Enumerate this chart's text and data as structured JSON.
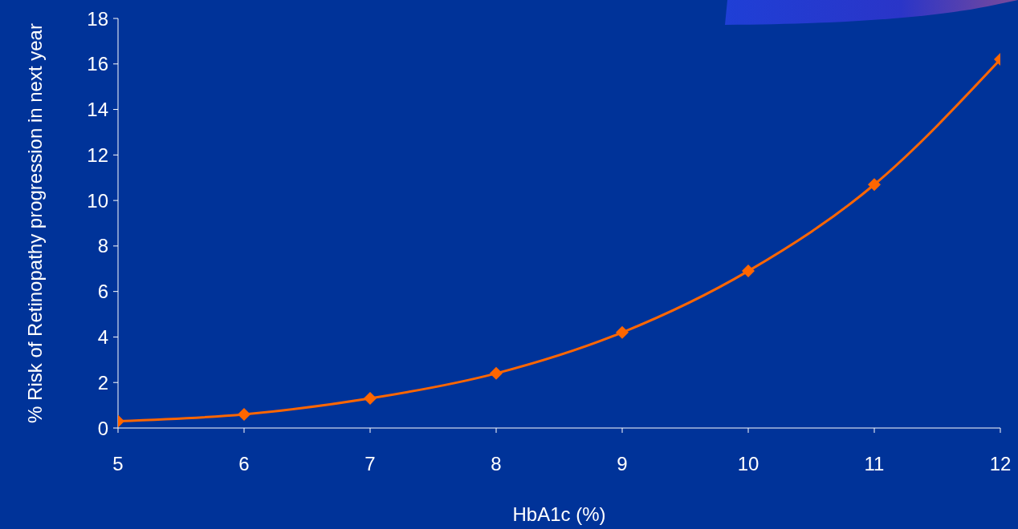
{
  "chart_data": {
    "type": "line",
    "xlabel": "HbA1c (%)",
    "ylabel": "% Risk of Retinopathy progression in next year",
    "x": [
      5,
      6,
      7,
      8,
      9,
      10,
      11,
      12
    ],
    "series": [
      {
        "color": "#ff6600",
        "values": [
          0.3,
          0.6,
          1.3,
          2.4,
          4.2,
          6.9,
          10.7,
          16.2
        ]
      }
    ],
    "xlim": [
      5,
      12
    ],
    "xticks": [
      5,
      6,
      7,
      8,
      9,
      10,
      11,
      12
    ],
    "ylim": [
      0,
      18
    ],
    "yticks": [
      0,
      2,
      4,
      6,
      8,
      10,
      12,
      14,
      16,
      18
    ],
    "grid": false,
    "legend": false,
    "marker": "diamond",
    "line_style": "solid"
  }
}
